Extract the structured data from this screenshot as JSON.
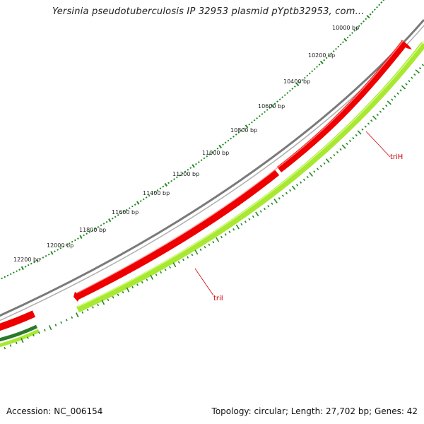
{
  "title": "Yersinia pseudotuberculosis IP 32953 plasmid pYptb32953, com...",
  "accession": "Accession: NC_006154",
  "summary": "Topology: circular; Length: 27,702 bp; Genes: 42",
  "ruler": {
    "labels": [
      "10000 bp",
      "10200 bp",
      "10400 bp",
      "10600 bp",
      "10800 bp",
      "11000 bp",
      "11200 bp",
      "11400 bp",
      "11600 bp",
      "11800 bp",
      "12000 bp",
      "12200 bp"
    ]
  },
  "genes": [
    {
      "name": "triH"
    },
    {
      "name": "triI"
    }
  ],
  "colors": {
    "backbone": "#8a8a8a",
    "forward_genes": "#ee0000",
    "reverse_genes": "#a8e832",
    "ticks": "#1e8a1e",
    "labels": "#cc0000",
    "dark_strand": "#2a7a2a"
  }
}
